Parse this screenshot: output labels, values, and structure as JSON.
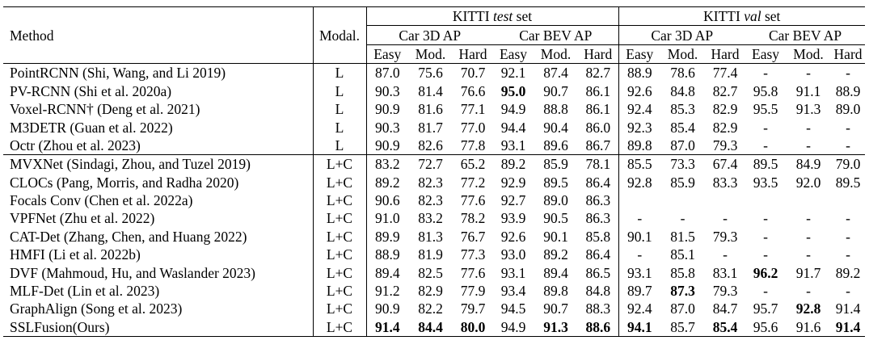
{
  "header": {
    "method": "Method",
    "modal": "Modal.",
    "test_set_prefix": "KITTI ",
    "test_set_italic": "test",
    "test_set_suffix": " set",
    "val_set_prefix": "KITTI ",
    "val_set_italic": "val",
    "val_set_suffix": " set",
    "car3d": "Car 3D AP",
    "carbev": "Car BEV AP",
    "easy": "Easy",
    "mod": "Mod.",
    "hard": "Hard"
  },
  "rows": [
    {
      "method": "PointRCNN (Shi, Wang, and Li 2019)",
      "modal": "L",
      "v": [
        "87.0",
        "75.6",
        "70.7",
        "92.1",
        "87.4",
        "82.7",
        "88.9",
        "78.6",
        "77.4",
        "-",
        "-",
        "-"
      ]
    },
    {
      "method": "PV-RCNN (Shi et al. 2020a)",
      "modal": "L",
      "v": [
        "90.3",
        "81.4",
        "76.6",
        "95.0",
        "90.7",
        "86.1",
        "92.6",
        "84.8",
        "82.7",
        "95.8",
        "91.1",
        "88.9"
      ]
    },
    {
      "method": "Voxel-RCNN† (Deng et al. 2021)",
      "modal": "L",
      "v": [
        "90.9",
        "81.6",
        "77.1",
        "94.9",
        "88.8",
        "86.1",
        "92.4",
        "85.3",
        "82.9",
        "95.5",
        "91.3",
        "89.0"
      ]
    },
    {
      "method": "M3DETR (Guan et al. 2022)",
      "modal": "L",
      "v": [
        "90.3",
        "81.7",
        "77.0",
        "94.4",
        "90.4",
        "86.0",
        "92.3",
        "85.4",
        "82.9",
        "-",
        "-",
        "-"
      ]
    },
    {
      "method": "Octr (Zhou et al. 2023)",
      "modal": "L",
      "v": [
        "90.9",
        "82.6",
        "77.8",
        "93.1",
        "89.6",
        "86.7",
        "89.8",
        "87.0",
        "79.3",
        "-",
        "-",
        "-"
      ]
    },
    {
      "method": "MVXNet (Sindagi, Zhou, and Tuzel 2019)",
      "modal": "L+C",
      "v": [
        "83.2",
        "72.7",
        "65.2",
        "89.2",
        "85.9",
        "78.1",
        "85.5",
        "73.3",
        "67.4",
        "89.5",
        "84.9",
        "79.0"
      ]
    },
    {
      "method": "CLOCs (Pang, Morris, and Radha 2020)",
      "modal": "L+C",
      "v": [
        "89.2",
        "82.3",
        "77.2",
        "92.9",
        "89.5",
        "86.4",
        "92.8",
        "85.9",
        "83.3",
        "93.5",
        "92.0",
        "89.5"
      ]
    },
    {
      "method": "Focals Conv (Chen et al. 2022a)",
      "modal": "L+C",
      "v": [
        "90.6",
        "82.3",
        "77.6",
        "92.7",
        "89.0",
        "86.3",
        "",
        "",
        "",
        "",
        "",
        ""
      ]
    },
    {
      "method": "VPFNet (Zhu et al. 2022)",
      "modal": "L+C",
      "v": [
        "91.0",
        "83.2",
        "78.2",
        "93.9",
        "90.5",
        "86.3",
        "-",
        "-",
        "-",
        "-",
        "-",
        "-"
      ]
    },
    {
      "method": "CAT-Det (Zhang, Chen, and Huang 2022)",
      "modal": "L+C",
      "v": [
        "89.9",
        "81.3",
        "76.7",
        "92.6",
        "90.1",
        "85.8",
        "90.1",
        "81.5",
        "79.3",
        "-",
        "-",
        "-"
      ]
    },
    {
      "method": "HMFI (Li et al. 2022b)",
      "modal": "L+C",
      "v": [
        "88.9",
        "81.9",
        "77.3",
        "93.0",
        "89.2",
        "86.4",
        "-",
        "85.1",
        "-",
        "-",
        "-",
        "-"
      ]
    },
    {
      "method": "DVF (Mahmoud, Hu, and Waslander 2023)",
      "modal": "L+C",
      "v": [
        "89.4",
        "82.5",
        "77.6",
        "93.1",
        "89.4",
        "86.5",
        "93.1",
        "85.8",
        "83.1",
        "96.2",
        "91.7",
        "89.2"
      ]
    },
    {
      "method": "MLF-Det (Lin et al. 2023)",
      "modal": "L+C",
      "v": [
        "91.2",
        "82.9",
        "77.9",
        "93.4",
        "89.8",
        "84.8",
        "89.7",
        "87.3",
        "79.3",
        "-",
        "-",
        "-"
      ]
    },
    {
      "method": "GraphAlign (Song et al. 2023)",
      "modal": "L+C",
      "v": [
        "90.9",
        "82.2",
        "79.7",
        "94.5",
        "90.7",
        "88.3",
        "92.4",
        "87.0",
        "84.7",
        "95.7",
        "92.8",
        "91.4"
      ]
    },
    {
      "method": "SSLFusion(Ours)",
      "modal": "L+C",
      "v": [
        "91.4",
        "84.4",
        "80.0",
        "94.9",
        "91.3",
        "88.6",
        "94.1",
        "85.7",
        "85.4",
        "95.6",
        "91.6",
        "91.4"
      ]
    }
  ],
  "bold": [
    [
      1,
      3
    ],
    [
      11,
      9
    ],
    [
      12,
      7
    ],
    [
      13,
      10
    ],
    [
      14,
      0
    ],
    [
      14,
      1
    ],
    [
      14,
      2
    ],
    [
      14,
      4
    ],
    [
      14,
      5
    ],
    [
      14,
      6
    ],
    [
      14,
      8
    ],
    [
      14,
      11
    ]
  ]
}
